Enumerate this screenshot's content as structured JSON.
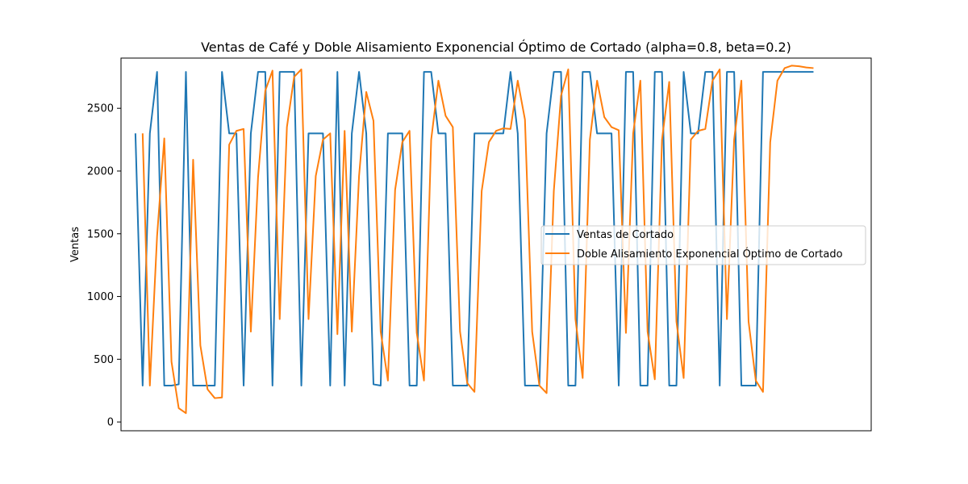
{
  "chart_data": {
    "type": "line",
    "title": "Ventas de Café y Doble Alisamiento Exponencial Óptimo de Cortado (alpha=0.8, beta=0.2)",
    "xlabel": "",
    "ylabel": "Ventas",
    "xlim": [
      -2,
      102
    ],
    "ylim": [
      -70,
      2900
    ],
    "yticks": [
      0,
      500,
      1000,
      1500,
      2000,
      2500
    ],
    "xticks_visible": false,
    "grid": false,
    "legend": {
      "position": "center-right"
    },
    "series": [
      {
        "name": "Ventas de Cortado",
        "color": "#1f77b4",
        "x": [
          0,
          1,
          2,
          3,
          4,
          5,
          6,
          7,
          8,
          9,
          10,
          11,
          12,
          13,
          14,
          15,
          16,
          17,
          18,
          19,
          20,
          21,
          22,
          23,
          24,
          25,
          26,
          27,
          28,
          29,
          30,
          31,
          32,
          33,
          34,
          35,
          36,
          37,
          38,
          39,
          40,
          41,
          42,
          43,
          44,
          45,
          46,
          47,
          48,
          49,
          50,
          51,
          52,
          53,
          54,
          55,
          56,
          57,
          58,
          59,
          60,
          61,
          62,
          63,
          64,
          65,
          66,
          67,
          68,
          69,
          70,
          71,
          72,
          73,
          74,
          75,
          76,
          77,
          78,
          79,
          80,
          81,
          82,
          83,
          84,
          85,
          86,
          87,
          88,
          89,
          90,
          91,
          92,
          93,
          94
        ],
        "values": [
          2300,
          290,
          2300,
          2790,
          290,
          290,
          300,
          2790,
          290,
          290,
          290,
          290,
          2790,
          2300,
          2300,
          290,
          2300,
          2790,
          2790,
          290,
          2790,
          2790,
          2790,
          290,
          2300,
          2300,
          2300,
          290,
          2790,
          290,
          2300,
          2790,
          2300,
          300,
          290,
          2300,
          2300,
          2300,
          290,
          290,
          2790,
          2790,
          2300,
          2300,
          290,
          290,
          290,
          2300,
          2300,
          2300,
          2300,
          2300,
          2790,
          2300,
          290,
          290,
          290,
          2300,
          2790,
          2790,
          290,
          290,
          2790,
          2790,
          2300,
          2300,
          2300,
          290,
          2790,
          2790,
          290,
          290,
          2790,
          2790,
          290,
          290,
          2790,
          2300,
          2300,
          2790,
          2790,
          290,
          2790,
          2790,
          290,
          290,
          290,
          2790,
          2790,
          2790,
          2790,
          2790,
          2790,
          2790,
          2790
        ]
      },
      {
        "name": "Doble Alisamiento Exponencial Óptimo de Cortado",
        "color": "#ff7f0e",
        "x": [
          1,
          2,
          3,
          4,
          5,
          6,
          7,
          8,
          9,
          10,
          11,
          12,
          13,
          14,
          15,
          16,
          17,
          18,
          19,
          20,
          21,
          22,
          23,
          24,
          25,
          26,
          27,
          28,
          29,
          30,
          31,
          32,
          33,
          34,
          35,
          36,
          37,
          38,
          39,
          40,
          41,
          42,
          43,
          44,
          45,
          46,
          47,
          48,
          49,
          50,
          51,
          52,
          53,
          54,
          55,
          56,
          57,
          58,
          59,
          60,
          61,
          62,
          63,
          64,
          65,
          66,
          67,
          68,
          69,
          70,
          71,
          72,
          73,
          74,
          75,
          76,
          77,
          78,
          79,
          80,
          81,
          82,
          83,
          84,
          85,
          86,
          87,
          88,
          89,
          90,
          91,
          92,
          93,
          94
        ],
        "values": [
          2300,
          290,
          1480,
          2260,
          480,
          110,
          70,
          2090,
          610,
          260,
          190,
          195,
          2210,
          2320,
          2335,
          720,
          1950,
          2640,
          2800,
          820,
          2350,
          2750,
          2810,
          820,
          1960,
          2250,
          2300,
          700,
          2320,
          720,
          1960,
          2630,
          2400,
          720,
          330,
          1850,
          2230,
          2320,
          710,
          330,
          2250,
          2720,
          2440,
          2350,
          720,
          310,
          240,
          1840,
          2230,
          2320,
          2340,
          2335,
          2720,
          2410,
          720,
          290,
          230,
          1840,
          2600,
          2810,
          820,
          350,
          2250,
          2720,
          2430,
          2350,
          2325,
          710,
          2300,
          2720,
          720,
          340,
          2250,
          2710,
          800,
          350,
          2250,
          2320,
          2335,
          2720,
          2810,
          820,
          2250,
          2720,
          800,
          330,
          240,
          2230,
          2720,
          2820,
          2840,
          2835,
          2825,
          2820
        ]
      }
    ]
  }
}
